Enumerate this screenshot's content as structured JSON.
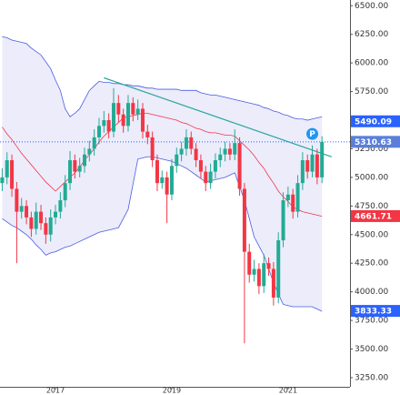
{
  "chart_data": {
    "type": "candlestick",
    "categories": [
      null,
      null,
      null,
      null,
      null,
      null,
      null,
      null,
      null,
      null,
      null,
      "2017",
      null,
      null,
      null,
      null,
      null,
      null,
      null,
      null,
      null,
      null,
      null,
      null,
      null,
      null,
      null,
      null,
      null,
      null,
      null,
      null,
      null,
      null,
      null,
      "2019",
      null,
      null,
      null,
      null,
      null,
      null,
      null,
      null,
      null,
      null,
      null,
      null,
      null,
      null,
      null,
      null,
      null,
      null,
      null,
      null,
      null,
      null,
      null,
      "2021",
      null,
      null,
      null,
      null,
      null,
      null,
      null
    ],
    "open": [
      4950,
      5000,
      5150,
      4900,
      4700,
      4750,
      4650,
      4550,
      4700,
      4600,
      4500,
      4650,
      4700,
      4800,
      4950,
      5150,
      5050,
      5100,
      5200,
      5250,
      5350,
      5450,
      5500,
      5400,
      5650,
      5550,
      5450,
      5650,
      5550,
      5600,
      5400,
      5350,
      5150,
      4950,
      5000,
      4850,
      5100,
      5200,
      5250,
      5350,
      5250,
      5150,
      5050,
      4950,
      5050,
      5150,
      5200,
      5250,
      5200,
      5300,
      4900,
      4350,
      4150,
      4200,
      4050,
      4250,
      4200,
      3950,
      4450,
      4800,
      4850,
      4700,
      4950,
      5150,
      5050,
      5200,
      5000
    ],
    "high": [
      5080,
      5220,
      5200,
      4960,
      4820,
      4800,
      4700,
      4780,
      4760,
      4650,
      4720,
      4760,
      4870,
      5020,
      5230,
      5200,
      5170,
      5260,
      5320,
      5420,
      5520,
      5580,
      5560,
      5780,
      5720,
      5600,
      5720,
      5700,
      5680,
      5650,
      5460,
      5400,
      5200,
      5060,
      5050,
      5160,
      5260,
      5310,
      5420,
      5400,
      5300,
      5200,
      5100,
      5120,
      5210,
      5260,
      5310,
      5300,
      5420,
      5350,
      4950,
      4420,
      4280,
      4250,
      4330,
      4300,
      4260,
      4520,
      4870,
      4920,
      4900,
      5020,
      5220,
      5200,
      5280,
      5250,
      5360
    ],
    "low": [
      4880,
      4940,
      4830,
      4250,
      4640,
      4590,
      4480,
      4500,
      4540,
      4420,
      4440,
      4590,
      4640,
      4740,
      4890,
      4990,
      5000,
      5040,
      5140,
      5190,
      5290,
      5390,
      5340,
      5350,
      5480,
      5390,
      5400,
      5490,
      5500,
      5340,
      5290,
      5090,
      4880,
      4900,
      4600,
      4800,
      5040,
      5140,
      5190,
      5200,
      5090,
      4990,
      4880,
      4900,
      4990,
      5090,
      5140,
      5150,
      5150,
      4840,
      3550,
      4080,
      4090,
      3980,
      3990,
      4140,
      3880,
      3900,
      4390,
      4740,
      4640,
      4650,
      4890,
      4990,
      5000,
      4940,
      4950
    ],
    "close": [
      5000,
      5150,
      4900,
      4700,
      4750,
      4650,
      4550,
      4700,
      4600,
      4500,
      4650,
      4700,
      4800,
      4950,
      5150,
      5050,
      5100,
      5200,
      5250,
      5350,
      5450,
      5500,
      5400,
      5650,
      5550,
      5450,
      5650,
      5550,
      5600,
      5400,
      5350,
      5150,
      4950,
      5000,
      4850,
      5100,
      5200,
      5250,
      5350,
      5250,
      5150,
      5050,
      4950,
      5050,
      5150,
      5200,
      5250,
      5200,
      5300,
      4900,
      4350,
      4150,
      4200,
      4050,
      4250,
      4200,
      3950,
      4450,
      4800,
      4850,
      4700,
      4950,
      5150,
      5050,
      5200,
      5000,
      5310
    ],
    "up_color": "#22ab94",
    "down_color": "#f23645",
    "bands": {
      "band_color": "#4a5ce0",
      "mid_color": "#f23645",
      "fill": "#e6e6fa",
      "upper": [
        6230,
        6220,
        6200,
        6190,
        6180,
        6170,
        6130,
        6100,
        6070,
        6010,
        5950,
        5850,
        5760,
        5600,
        5530,
        5560,
        5600,
        5680,
        5760,
        5800,
        5840,
        5830,
        5830,
        5820,
        5820,
        5810,
        5810,
        5800,
        5800,
        5790,
        5780,
        5780,
        5770,
        5770,
        5770,
        5770,
        5770,
        5760,
        5760,
        5760,
        5760,
        5740,
        5730,
        5720,
        5720,
        5710,
        5700,
        5690,
        5680,
        5670,
        5660,
        5650,
        5640,
        5630,
        5610,
        5600,
        5580,
        5570,
        5550,
        5540,
        5520,
        5510,
        5510,
        5500,
        5510,
        5520,
        5530
      ],
      "middle": [
        5440,
        5380,
        5330,
        5270,
        5210,
        5160,
        5110,
        5060,
        5010,
        4960,
        4920,
        4880,
        4920,
        4960,
        5000,
        5040,
        5090,
        5150,
        5200,
        5250,
        5310,
        5360,
        5400,
        5440,
        5480,
        5520,
        5530,
        5540,
        5550,
        5560,
        5560,
        5550,
        5540,
        5530,
        5520,
        5510,
        5500,
        5480,
        5470,
        5450,
        5430,
        5420,
        5400,
        5390,
        5390,
        5380,
        5370,
        5370,
        5360,
        5320,
        5280,
        5240,
        5190,
        5130,
        5080,
        5010,
        4950,
        4880,
        4830,
        4790,
        4740,
        4720,
        4700,
        4690,
        4680,
        4670,
        4660
      ],
      "lower": [
        4640,
        4610,
        4580,
        4560,
        4530,
        4500,
        4460,
        4410,
        4370,
        4320,
        4340,
        4350,
        4370,
        4390,
        4400,
        4420,
        4440,
        4460,
        4480,
        4500,
        4520,
        4530,
        4540,
        4550,
        4560,
        4640,
        4720,
        4940,
        5160,
        5170,
        5180,
        5180,
        5170,
        5160,
        5150,
        5140,
        5120,
        5100,
        5080,
        5050,
        5020,
        4990,
        4960,
        4970,
        4980,
        4990,
        5000,
        5020,
        5040,
        4920,
        4800,
        4640,
        4480,
        4400,
        4320,
        4200,
        4080,
        3980,
        3890,
        3880,
        3870,
        3870,
        3870,
        3870,
        3870,
        3850,
        3830
      ]
    },
    "trendline": {
      "x": [
        21,
        68
      ],
      "values": [
        5870,
        5180
      ],
      "color": "#26a69a"
    },
    "price_line": {
      "value": 5310.63,
      "color": "#2962ff"
    },
    "tags": [
      {
        "value": 5490.09,
        "color": "#2962ff"
      },
      {
        "value": 5310.63,
        "color": "#5b7fd9"
      },
      {
        "value": 4661.71,
        "color": "#f23645"
      },
      {
        "value": 3833.33,
        "color": "#2962ff"
      }
    ],
    "marker": {
      "label": "P",
      "x": 64,
      "value": 5380,
      "color": "#2196f3"
    },
    "ylim": [
      3170,
      6550
    ],
    "yticks": [
      {
        "value": 3250,
        "label": "3250.00"
      },
      {
        "value": 3500,
        "label": "3500.00"
      },
      {
        "value": 3750,
        "label": "3750.00"
      },
      {
        "value": 4000,
        "label": "4000.00"
      },
      {
        "value": 4250,
        "label": "4250.00"
      },
      {
        "value": 4500,
        "label": "4500.00"
      },
      {
        "value": 4750,
        "label": "4750.00"
      },
      {
        "value": 5000,
        "label": "5000.00"
      },
      {
        "value": 5250,
        "label": "5250.00"
      },
      {
        "value": 5500,
        "label": "5500.00"
      },
      {
        "value": 5750,
        "label": "5750.00"
      },
      {
        "value": 6000,
        "label": "6000.00"
      },
      {
        "value": 6250,
        "label": "6250.00"
      },
      {
        "value": 6500,
        "label": "6500.00"
      }
    ]
  }
}
